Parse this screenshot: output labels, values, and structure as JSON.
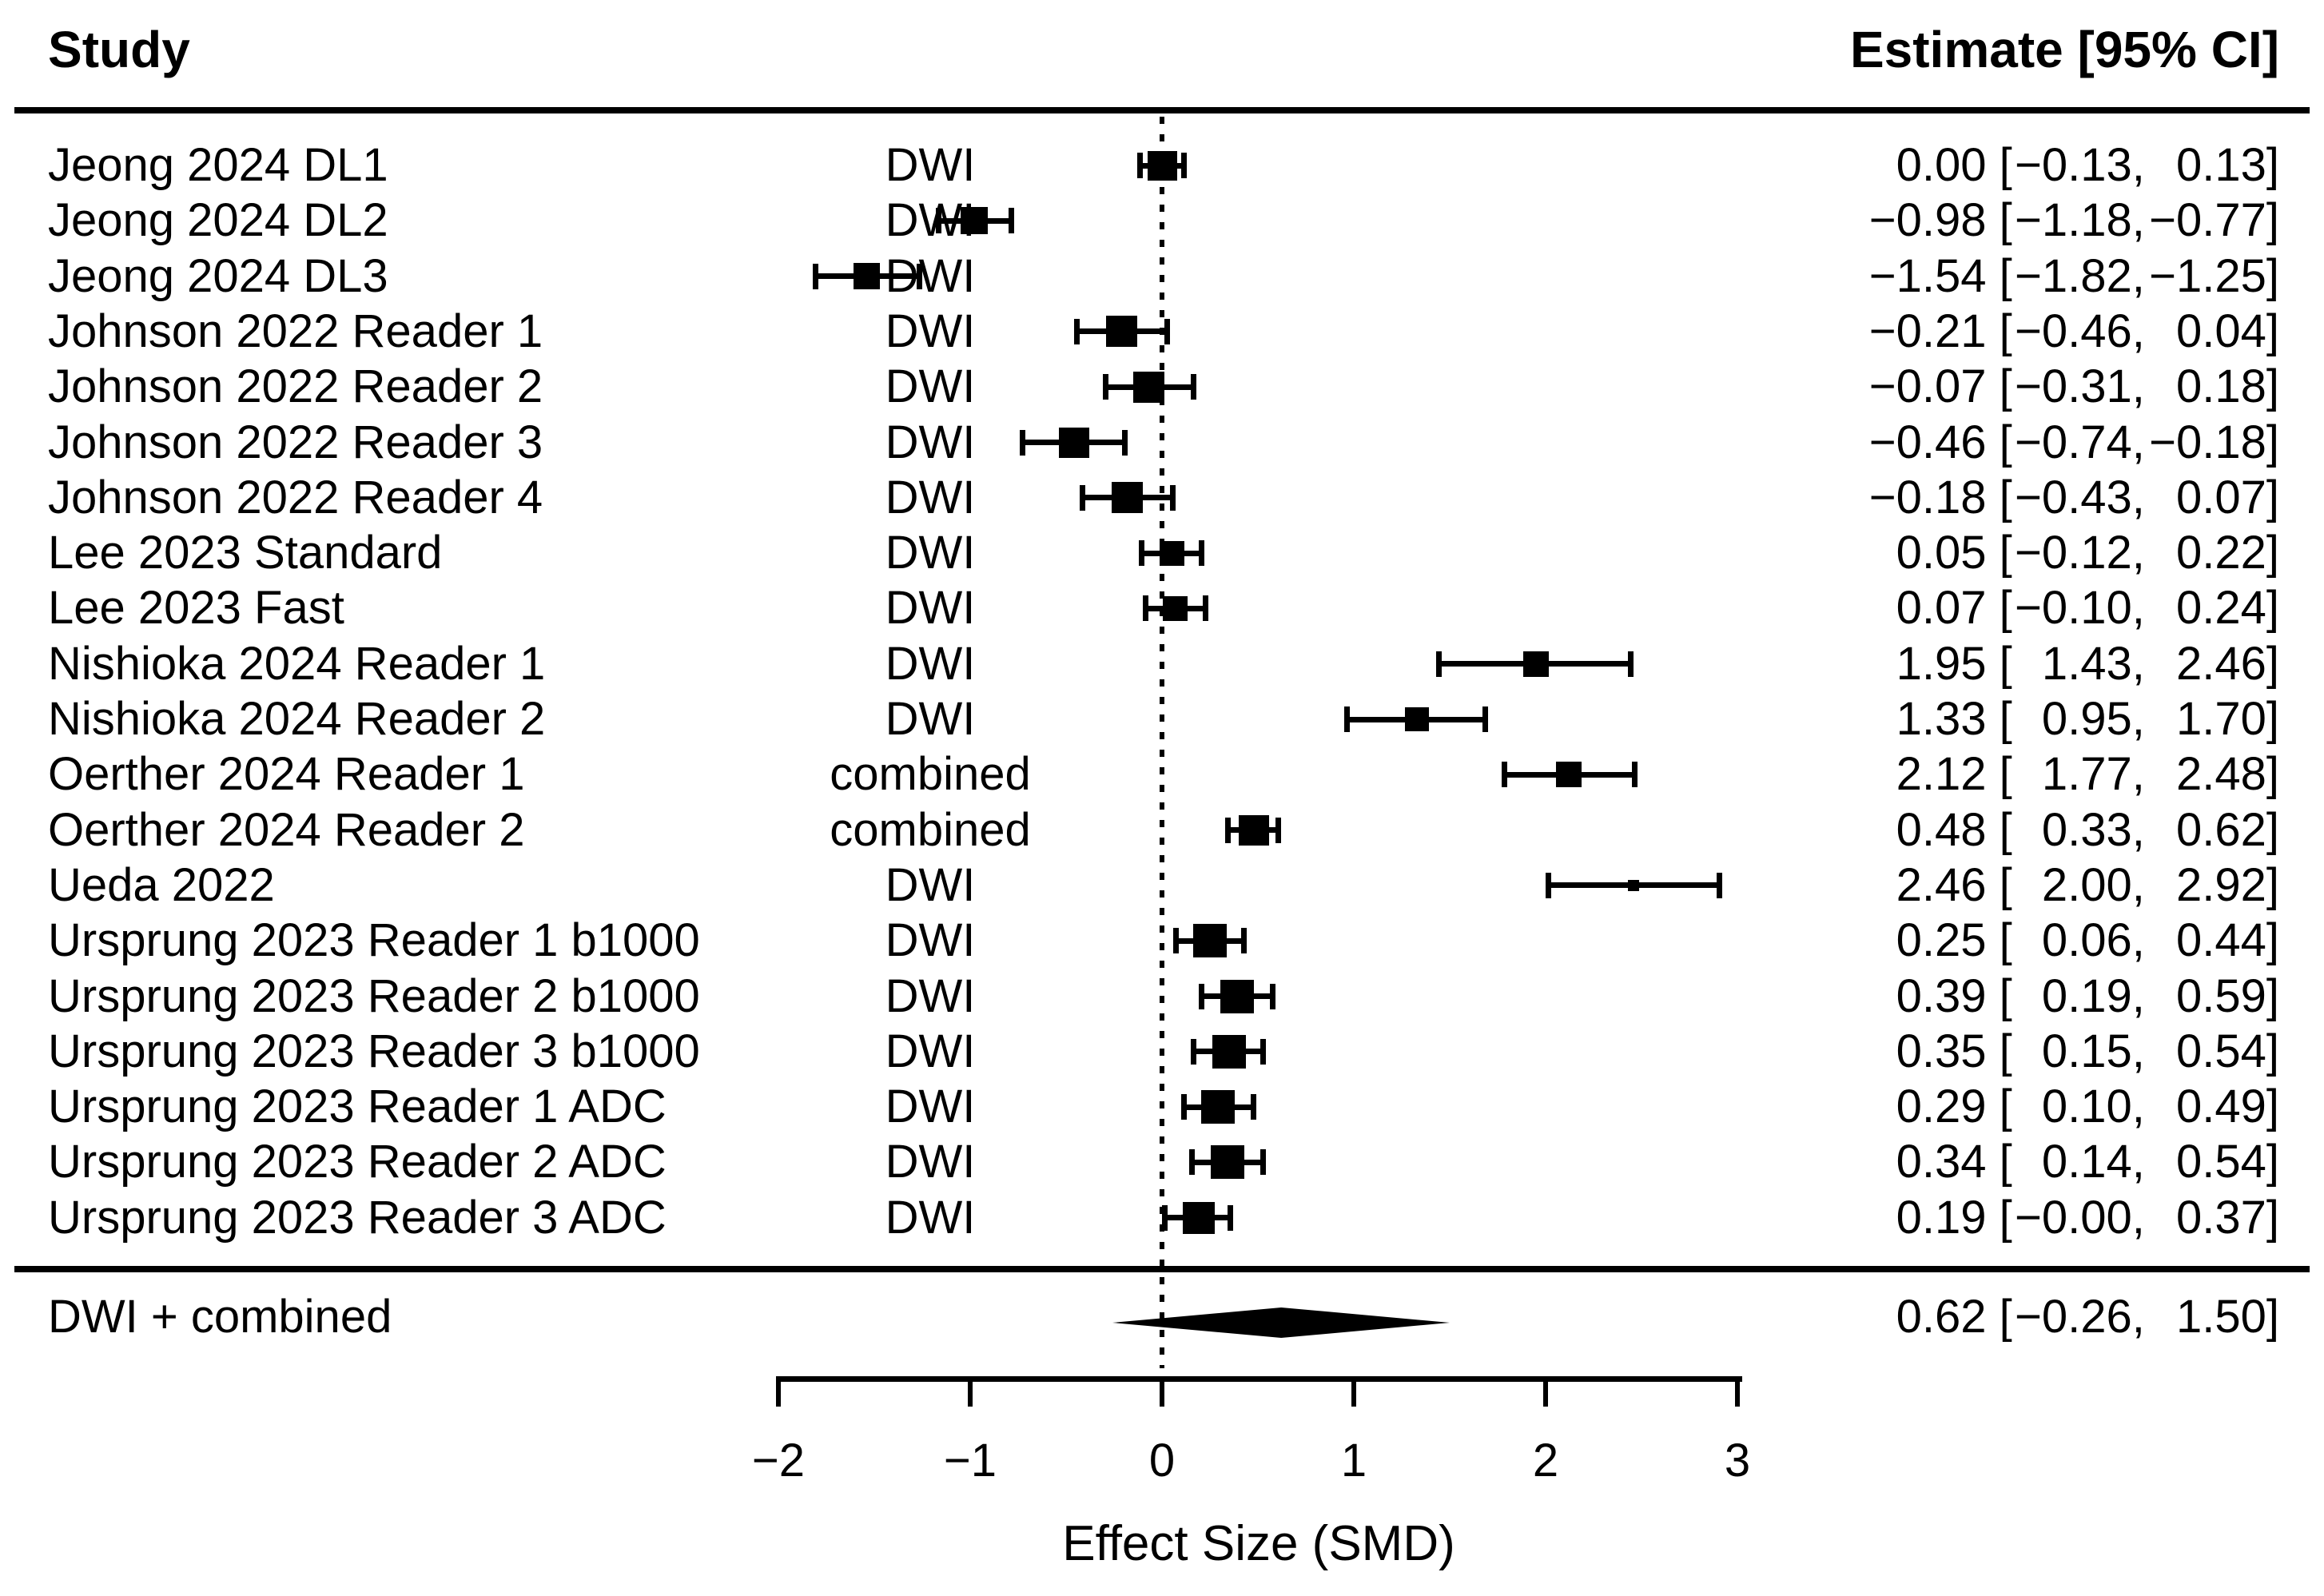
{
  "chart_data": {
    "type": "forest",
    "columns": {
      "study": "Study",
      "estimate": "Estimate [95% CI]"
    },
    "xlabel": "Effect Size (SMD)",
    "x_ticks": [
      -2,
      -1,
      0,
      1,
      2,
      3
    ],
    "x_tick_labels": [
      "−2",
      "−1",
      "0",
      "1",
      "2",
      "3"
    ],
    "xlim": [
      -2,
      3
    ],
    "zero_line": 0,
    "legend": "none",
    "grid": false,
    "rows": [
      {
        "study": "Jeong 2024 DL1",
        "modality": "DWI",
        "est": 0.0,
        "lo": -0.13,
        "hi": 0.13,
        "est_label": "0.00",
        "lo_label": "−0.13",
        "hi_label": "0.13",
        "marker_size": 37
      },
      {
        "study": "Jeong 2024 DL2",
        "modality": "DWI",
        "est": -0.98,
        "lo": -1.18,
        "hi": -0.77,
        "est_label": "−0.98",
        "lo_label": "−1.18",
        "hi_label": "−0.77",
        "marker_size": 34
      },
      {
        "study": "Jeong 2024 DL3",
        "modality": "DWI",
        "est": -1.54,
        "lo": -1.82,
        "hi": -1.25,
        "est_label": "−1.54",
        "lo_label": "−1.82",
        "hi_label": "−1.25",
        "marker_size": 33
      },
      {
        "study": "Johnson 2022 Reader 1",
        "modality": "DWI",
        "est": -0.21,
        "lo": -0.46,
        "hi": 0.04,
        "est_label": "−0.21",
        "lo_label": "−0.46",
        "hi_label": "0.04",
        "marker_size": 39
      },
      {
        "study": "Johnson 2022 Reader 2",
        "modality": "DWI",
        "est": -0.07,
        "lo": -0.31,
        "hi": 0.18,
        "est_label": "−0.07",
        "lo_label": "−0.31",
        "hi_label": "0.18",
        "marker_size": 39
      },
      {
        "study": "Johnson 2022 Reader 3",
        "modality": "DWI",
        "est": -0.46,
        "lo": -0.74,
        "hi": -0.18,
        "est_label": "−0.46",
        "lo_label": "−0.74",
        "hi_label": "−0.18",
        "marker_size": 38
      },
      {
        "study": "Johnson 2022 Reader 4",
        "modality": "DWI",
        "est": -0.18,
        "lo": -0.43,
        "hi": 0.07,
        "est_label": "−0.18",
        "lo_label": "−0.43",
        "hi_label": "0.07",
        "marker_size": 39
      },
      {
        "study": "Lee 2023 Standard",
        "modality": "DWI",
        "est": 0.05,
        "lo": -0.12,
        "hi": 0.22,
        "est_label": "0.05",
        "lo_label": "−0.12",
        "hi_label": "0.22",
        "marker_size": 31
      },
      {
        "study": "Lee 2023 Fast",
        "modality": "DWI",
        "est": 0.07,
        "lo": -0.1,
        "hi": 0.24,
        "est_label": "0.07",
        "lo_label": "−0.10",
        "hi_label": "0.24",
        "marker_size": 31
      },
      {
        "study": "Nishioka 2024 Reader 1",
        "modality": "DWI",
        "est": 1.95,
        "lo": 1.43,
        "hi": 2.46,
        "est_label": "1.95",
        "lo_label": "1.43",
        "hi_label": "2.46",
        "marker_size": 32
      },
      {
        "study": "Nishioka 2024 Reader 2",
        "modality": "DWI",
        "est": 1.33,
        "lo": 0.95,
        "hi": 1.7,
        "est_label": "1.33",
        "lo_label": "0.95",
        "hi_label": "1.70",
        "marker_size": 30
      },
      {
        "study": "Oerther 2024 Reader 1",
        "modality": "combined",
        "est": 2.12,
        "lo": 1.77,
        "hi": 2.48,
        "est_label": "2.12",
        "lo_label": "1.77",
        "hi_label": "2.48",
        "marker_size": 32
      },
      {
        "study": "Oerther 2024 Reader 2",
        "modality": "combined",
        "est": 0.48,
        "lo": 0.33,
        "hi": 0.62,
        "est_label": "0.48",
        "lo_label": "0.33",
        "hi_label": "0.62",
        "marker_size": 38
      },
      {
        "study": "Ueda 2022",
        "modality": "DWI",
        "est": 2.46,
        "lo": 2.0,
        "hi": 2.92,
        "est_label": "2.46",
        "lo_label": "2.00",
        "hi_label": "2.92",
        "marker_size": 14
      },
      {
        "study": "Ursprung 2023 Reader 1 b1000",
        "modality": "DWI",
        "est": 0.25,
        "lo": 0.06,
        "hi": 0.44,
        "est_label": "0.25",
        "lo_label": "0.06",
        "hi_label": "0.44",
        "marker_size": 42
      },
      {
        "study": "Ursprung 2023 Reader 2 b1000",
        "modality": "DWI",
        "est": 0.39,
        "lo": 0.19,
        "hi": 0.59,
        "est_label": "0.39",
        "lo_label": "0.19",
        "hi_label": "0.59",
        "marker_size": 42
      },
      {
        "study": "Ursprung 2023 Reader 3 b1000",
        "modality": "DWI",
        "est": 0.35,
        "lo": 0.15,
        "hi": 0.54,
        "est_label": "0.35",
        "lo_label": "0.15",
        "hi_label": "0.54",
        "marker_size": 42
      },
      {
        "study": "Ursprung 2023 Reader 1 ADC",
        "modality": "DWI",
        "est": 0.29,
        "lo": 0.1,
        "hi": 0.49,
        "est_label": "0.29",
        "lo_label": "0.10",
        "hi_label": "0.49",
        "marker_size": 42
      },
      {
        "study": "Ursprung 2023 Reader 2 ADC",
        "modality": "DWI",
        "est": 0.34,
        "lo": 0.14,
        "hi": 0.54,
        "est_label": "0.34",
        "lo_label": "0.14",
        "hi_label": "0.54",
        "marker_size": 42
      },
      {
        "study": "Ursprung 2023 Reader 3 ADC",
        "modality": "DWI",
        "est": 0.19,
        "lo": -0.0,
        "hi": 0.37,
        "est_label": "0.19",
        "lo_label": "−0.00",
        "hi_label": "0.37",
        "marker_size": 40
      }
    ],
    "summary": {
      "label": "DWI + combined",
      "est": 0.62,
      "lo": -0.26,
      "hi": 1.5,
      "est_label": "0.62",
      "lo_label": "−0.26",
      "hi_label": "1.50"
    },
    "colors": {
      "foreground": "#000000",
      "background": "#ffffff"
    }
  }
}
